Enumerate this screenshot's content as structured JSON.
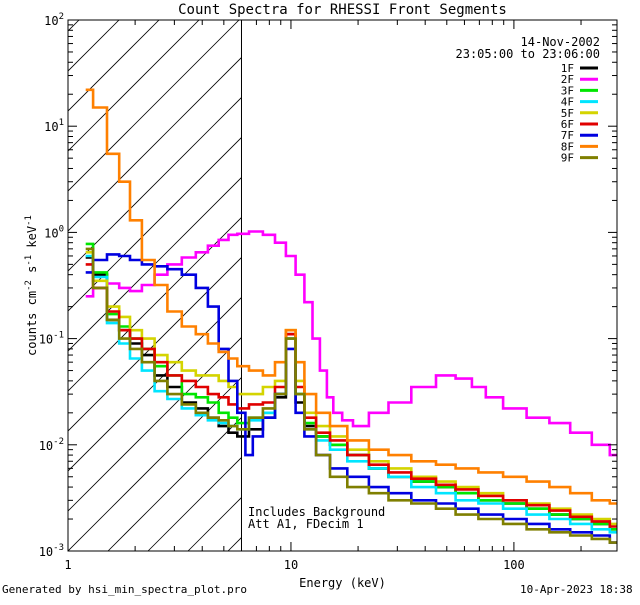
{
  "chart_data": {
    "type": "line",
    "title": "Count Spectra for RHESSI Front Segments",
    "xlabel": "Energy (keV)",
    "ylabel": "counts cm^-2 s^-1 keV^-1",
    "xscale": "log",
    "yscale": "log",
    "xlim": [
      1,
      290
    ],
    "ylim": [
      0.001,
      100
    ],
    "date": "14-Nov-2002",
    "time_range": "23:05:00 to 23:06:00",
    "annotations": [
      "Includes Background",
      "Att A1, FDecim 1"
    ],
    "shaded_region": {
      "x_from": 1,
      "x_to": 6,
      "pattern": "diagonal-hatch"
    },
    "x_ticks": [
      {
        "value": 1,
        "label": "1"
      },
      {
        "value": 10,
        "label": "10"
      },
      {
        "value": 100,
        "label": "100"
      }
    ],
    "y_ticks": [
      {
        "value": 0.001,
        "mantissa": "10",
        "exp": "-3"
      },
      {
        "value": 0.01,
        "mantissa": "10",
        "exp": "-2"
      },
      {
        "value": 0.1,
        "mantissa": "10",
        "exp": "-1"
      },
      {
        "value": 1,
        "mantissa": "10",
        "exp": "0"
      },
      {
        "value": 10,
        "mantissa": "10",
        "exp": "1"
      },
      {
        "value": 100,
        "mantissa": "10",
        "exp": "2"
      }
    ],
    "series": [
      {
        "name": "1F",
        "color": "#000000",
        "x": [
          1.2,
          1.4,
          1.6,
          1.8,
          2.0,
          2.3,
          2.6,
          3.0,
          3.5,
          4.0,
          4.5,
          5.0,
          5.5,
          6.0,
          7.0,
          8.0,
          9.0,
          10,
          11,
          12,
          14,
          16,
          20,
          25,
          30,
          40,
          50,
          60,
          80,
          100,
          130,
          160,
          200,
          250,
          290
        ],
        "y": [
          0.58,
          0.4,
          0.15,
          0.12,
          0.09,
          0.07,
          0.045,
          0.035,
          0.025,
          0.022,
          0.018,
          0.015,
          0.013,
          0.012,
          0.014,
          0.018,
          0.028,
          0.11,
          0.025,
          0.015,
          0.012,
          0.01,
          0.008,
          0.006,
          0.005,
          0.0045,
          0.004,
          0.0035,
          0.003,
          0.0028,
          0.0025,
          0.0022,
          0.002,
          0.0018,
          0.0016
        ]
      },
      {
        "name": "2F",
        "color": "#ff00ff",
        "x": [
          1.2,
          1.4,
          1.6,
          1.8,
          2.0,
          2.3,
          2.6,
          3.0,
          3.5,
          4.0,
          4.5,
          5.0,
          5.5,
          6.0,
          7.0,
          8.0,
          9.0,
          10,
          11,
          12,
          13,
          14,
          15,
          16,
          18,
          20,
          25,
          30,
          40,
          50,
          60,
          70,
          80,
          100,
          130,
          160,
          200,
          250,
          290
        ],
        "y": [
          0.25,
          0.3,
          0.33,
          0.3,
          0.28,
          0.32,
          0.4,
          0.5,
          0.58,
          0.65,
          0.75,
          0.85,
          0.95,
          0.97,
          1.02,
          0.95,
          0.8,
          0.6,
          0.4,
          0.22,
          0.1,
          0.05,
          0.028,
          0.02,
          0.017,
          0.015,
          0.02,
          0.025,
          0.035,
          0.045,
          0.042,
          0.035,
          0.028,
          0.022,
          0.018,
          0.016,
          0.013,
          0.01,
          0.008
        ]
      },
      {
        "name": "3F",
        "color": "#00e600",
        "x": [
          1.2,
          1.4,
          1.6,
          1.8,
          2.0,
          2.3,
          2.6,
          3.0,
          3.5,
          4.0,
          4.5,
          5.0,
          5.5,
          6.0,
          7.0,
          8.0,
          9.0,
          10,
          11,
          12,
          14,
          16,
          20,
          25,
          30,
          40,
          50,
          60,
          80,
          100,
          130,
          160,
          200,
          250,
          290
        ],
        "y": [
          0.78,
          0.42,
          0.17,
          0.13,
          0.1,
          0.08,
          0.055,
          0.045,
          0.03,
          0.028,
          0.025,
          0.02,
          0.018,
          0.016,
          0.018,
          0.02,
          0.03,
          0.1,
          0.03,
          0.016,
          0.012,
          0.01,
          0.008,
          0.006,
          0.005,
          0.0045,
          0.004,
          0.0035,
          0.003,
          0.0028,
          0.0025,
          0.0022,
          0.002,
          0.0018,
          0.0016
        ]
      },
      {
        "name": "4F",
        "color": "#00e5ff",
        "x": [
          1.2,
          1.4,
          1.6,
          1.8,
          2.0,
          2.3,
          2.6,
          3.0,
          3.5,
          4.0,
          4.5,
          5.0,
          5.5,
          6.0,
          7.0,
          8.0,
          9.0,
          10,
          11,
          12,
          14,
          16,
          20,
          25,
          30,
          40,
          50,
          60,
          80,
          100,
          130,
          160,
          200,
          250,
          290
        ],
        "y": [
          0.6,
          0.38,
          0.14,
          0.09,
          0.065,
          0.05,
          0.032,
          0.027,
          0.022,
          0.019,
          0.017,
          0.016,
          0.015,
          0.014,
          0.017,
          0.02,
          0.03,
          0.1,
          0.03,
          0.014,
          0.011,
          0.009,
          0.007,
          0.006,
          0.005,
          0.004,
          0.0035,
          0.003,
          0.0028,
          0.0025,
          0.0022,
          0.002,
          0.0018,
          0.0016,
          0.0015
        ]
      },
      {
        "name": "5F",
        "color": "#d4d400",
        "x": [
          1.2,
          1.4,
          1.6,
          1.8,
          2.0,
          2.3,
          2.6,
          3.0,
          3.5,
          4.0,
          4.5,
          5.0,
          5.5,
          6.0,
          7.0,
          8.0,
          9.0,
          10,
          11,
          12,
          14,
          16,
          20,
          25,
          30,
          40,
          50,
          60,
          80,
          100,
          130,
          160,
          200,
          250,
          290
        ],
        "y": [
          0.65,
          0.35,
          0.2,
          0.16,
          0.12,
          0.1,
          0.07,
          0.06,
          0.05,
          0.045,
          0.045,
          0.04,
          0.035,
          0.03,
          0.03,
          0.035,
          0.04,
          0.12,
          0.04,
          0.02,
          0.015,
          0.012,
          0.009,
          0.007,
          0.006,
          0.005,
          0.0045,
          0.004,
          0.0035,
          0.003,
          0.0028,
          0.0025,
          0.0022,
          0.002,
          0.0018
        ]
      },
      {
        "name": "6F",
        "color": "#e00000",
        "x": [
          1.2,
          1.4,
          1.6,
          1.8,
          2.0,
          2.3,
          2.6,
          3.0,
          3.5,
          4.0,
          4.5,
          5.0,
          5.5,
          6.0,
          7.0,
          8.0,
          9.0,
          10,
          11,
          12,
          14,
          16,
          20,
          25,
          30,
          40,
          50,
          60,
          80,
          100,
          130,
          160,
          200,
          250,
          290
        ],
        "y": [
          0.5,
          0.3,
          0.18,
          0.12,
          0.1,
          0.08,
          0.06,
          0.045,
          0.04,
          0.035,
          0.03,
          0.028,
          0.024,
          0.022,
          0.024,
          0.025,
          0.035,
          0.11,
          0.035,
          0.018,
          0.013,
          0.011,
          0.008,
          0.0065,
          0.0055,
          0.0048,
          0.0042,
          0.0038,
          0.0033,
          0.003,
          0.0027,
          0.0024,
          0.0021,
          0.0019,
          0.0017
        ]
      },
      {
        "name": "7F",
        "color": "#0000e0",
        "x": [
          1.2,
          1.4,
          1.6,
          1.8,
          2.0,
          2.3,
          2.6,
          3.0,
          3.5,
          4.0,
          4.5,
          5.0,
          5.5,
          6.0,
          6.5,
          7.0,
          8.0,
          9.0,
          10,
          11,
          12,
          14,
          16,
          20,
          25,
          30,
          40,
          50,
          60,
          80,
          100,
          130,
          160,
          200,
          250,
          290
        ],
        "y": [
          0.42,
          0.55,
          0.62,
          0.6,
          0.55,
          0.5,
          0.48,
          0.45,
          0.4,
          0.3,
          0.2,
          0.08,
          0.04,
          0.02,
          0.008,
          0.012,
          0.018,
          0.03,
          0.08,
          0.02,
          0.012,
          0.008,
          0.006,
          0.005,
          0.004,
          0.0035,
          0.003,
          0.0028,
          0.0025,
          0.0022,
          0.002,
          0.0018,
          0.0016,
          0.0015,
          0.0014,
          0.0012
        ]
      },
      {
        "name": "8F",
        "color": "#ff8000",
        "x": [
          1.2,
          1.4,
          1.6,
          1.8,
          2.0,
          2.3,
          2.6,
          3.0,
          3.5,
          4.0,
          4.5,
          5.0,
          5.5,
          6.0,
          7.0,
          8.0,
          9.0,
          10,
          11,
          12,
          14,
          16,
          20,
          25,
          30,
          40,
          50,
          60,
          80,
          100,
          130,
          160,
          200,
          250,
          290
        ],
        "y": [
          22,
          15,
          5.5,
          3.0,
          1.3,
          0.55,
          0.32,
          0.18,
          0.13,
          0.11,
          0.09,
          0.075,
          0.065,
          0.055,
          0.05,
          0.045,
          0.06,
          0.12,
          0.06,
          0.03,
          0.02,
          0.015,
          0.011,
          0.009,
          0.008,
          0.007,
          0.0065,
          0.006,
          0.0055,
          0.005,
          0.0045,
          0.004,
          0.0035,
          0.003,
          0.0028
        ]
      },
      {
        "name": "9F",
        "color": "#7f7f00",
        "x": [
          1.2,
          1.4,
          1.6,
          1.8,
          2.0,
          2.3,
          2.6,
          3.0,
          3.5,
          4.0,
          4.5,
          5.0,
          5.5,
          6.0,
          7.0,
          8.0,
          9.0,
          10,
          11,
          12,
          14,
          16,
          20,
          25,
          30,
          40,
          50,
          60,
          80,
          100,
          130,
          160,
          200,
          250,
          290
        ],
        "y": [
          0.7,
          0.3,
          0.15,
          0.1,
          0.08,
          0.06,
          0.04,
          0.03,
          0.024,
          0.02,
          0.018,
          0.017,
          0.015,
          0.014,
          0.018,
          0.022,
          0.03,
          0.1,
          0.03,
          0.014,
          0.008,
          0.005,
          0.004,
          0.0035,
          0.003,
          0.0028,
          0.0025,
          0.0022,
          0.002,
          0.0018,
          0.0016,
          0.0015,
          0.0014,
          0.0013,
          0.0012
        ]
      }
    ]
  },
  "footer": {
    "generated_by": "Generated by hsi_min_spectra_plot.pro",
    "timestamp": "10-Apr-2023 18:38"
  }
}
